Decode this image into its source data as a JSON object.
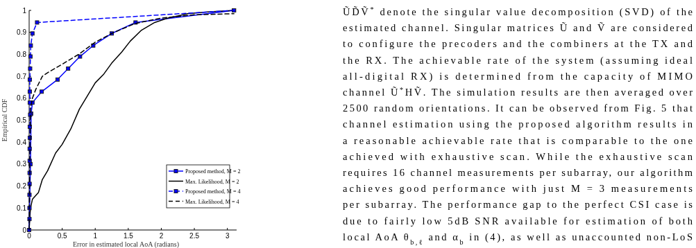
{
  "chart_data": {
    "type": "line",
    "xlabel": "Error in estimated local AoA (radians)",
    "ylabel": "Empirical CDF",
    "xlim": [
      0,
      3.14
    ],
    "ylim": [
      0,
      1
    ],
    "xticks": [
      0,
      0.5,
      1,
      1.5,
      2,
      2.5,
      3
    ],
    "yticks": [
      0,
      {
        "value": 0.1,
        "label": "0.1"
      },
      {
        "value": 0.2,
        "label": "0.2"
      },
      {
        "value": 0.3,
        "label": "0.3"
      },
      {
        "value": 0.4,
        "label": "0.4"
      },
      {
        "value": 0.5,
        "label": "0.5"
      },
      {
        "value": 0.6,
        "label": "0.6"
      },
      {
        "value": 0.7,
        "label": "0.7"
      },
      {
        "value": 0.8,
        "label": "0.8"
      },
      {
        "value": 0.9,
        "label": "0.9"
      },
      1
    ],
    "grid": false,
    "legend": "bottom right",
    "series": [
      {
        "name": "Proposed method, M = 2",
        "color": "#0000ff",
        "marker": "square",
        "line_style": "solid",
        "x": [
          0,
          0.02,
          0.03,
          0.05,
          0.19,
          0.43,
          0.59,
          0.77,
          0.97,
          1.25,
          1.61,
          3.1
        ],
        "values": [
          0,
          0.3,
          0.53,
          0.58,
          0.63,
          0.685,
          0.735,
          0.79,
          0.84,
          0.895,
          0.945,
          1
        ]
      },
      {
        "name": "Max. Likelihood, M = 2",
        "color": "#000000",
        "marker": "none",
        "line_style": "solid",
        "x": [
          0,
          0.02,
          0.05,
          0.14,
          0.2,
          0.28,
          0.4,
          0.5,
          0.63,
          0.76,
          0.88,
          1.0,
          1.13,
          1.25,
          1.4,
          1.53,
          1.7,
          1.9,
          2.1,
          2.4,
          2.7,
          3.1
        ],
        "values": [
          0,
          0.1,
          0.14,
          0.17,
          0.23,
          0.27,
          0.35,
          0.39,
          0.46,
          0.55,
          0.61,
          0.67,
          0.71,
          0.76,
          0.81,
          0.86,
          0.91,
          0.945,
          0.965,
          0.985,
          0.993,
          1
        ]
      },
      {
        "name": "Proposed method, M = 4",
        "color": "#0000ff",
        "marker": "square",
        "line_style": "dashed",
        "x": [
          0,
          0.005,
          0.005,
          0.005,
          0.007,
          0.007,
          0.008,
          0.008,
          0.01,
          0.01,
          0.015,
          0.01,
          0.01,
          0.01,
          0.015,
          0.02,
          0.025,
          0.05,
          0.12,
          3.1
        ],
        "values": [
          0,
          0.05,
          0.1,
          0.16,
          0.21,
          0.26,
          0.315,
          0.37,
          0.42,
          0.47,
          0.525,
          0.58,
          0.63,
          0.685,
          0.735,
          0.79,
          0.84,
          0.895,
          0.945,
          1
        ]
      },
      {
        "name": "Max. Likelihood, M = 4",
        "color": "#000000",
        "marker": "none",
        "line_style": "dashed",
        "x": [
          0,
          0.01,
          0.02,
          0.05,
          0.1,
          0.2,
          0.3,
          0.5,
          0.75,
          1.0,
          1.25,
          1.6,
          2.0,
          2.5,
          3.1
        ],
        "values": [
          0,
          0.3,
          0.55,
          0.6,
          0.64,
          0.7,
          0.72,
          0.755,
          0.8,
          0.855,
          0.895,
          0.94,
          0.965,
          0.98,
          0.985
        ]
      }
    ],
    "annotations": [
      "ŨD̃Ṽ$^{*}$ denote the singular value decomposition (SVD) of the",
      "estimated channel. Singular matrices Ũ and Ṽ are considered",
      "to configure the precoders and the combiners at the TX and",
      "the RX. The achievable rate of the system (assuming ideal",
      "all-digital RX) is determined from the capacity of MIMO",
      "channel Ũ$^{*}$HṼ. The simulation results are then averaged over",
      "2500 random orientations. It can be observed from Fig. 5 that",
      "channel estimation using the proposed algorithm results in",
      "a reasonable achievable rate that is comparable to the one",
      "achieved with exhaustive scan. While the exhaustive scan",
      "requires 16 channel measurements per subarray, our algorithm",
      "achieves good performance with just M = 3 measurements",
      "per subarray. The performance gap to the perfect CSI case is",
      "due to fairly low 5dB SNR available for estimation of both",
      "local AoA θ$_{b,ℓ}$ and α$_{b}$ in (4), as well as unaccounted non-LoS"
    ]
  }
}
